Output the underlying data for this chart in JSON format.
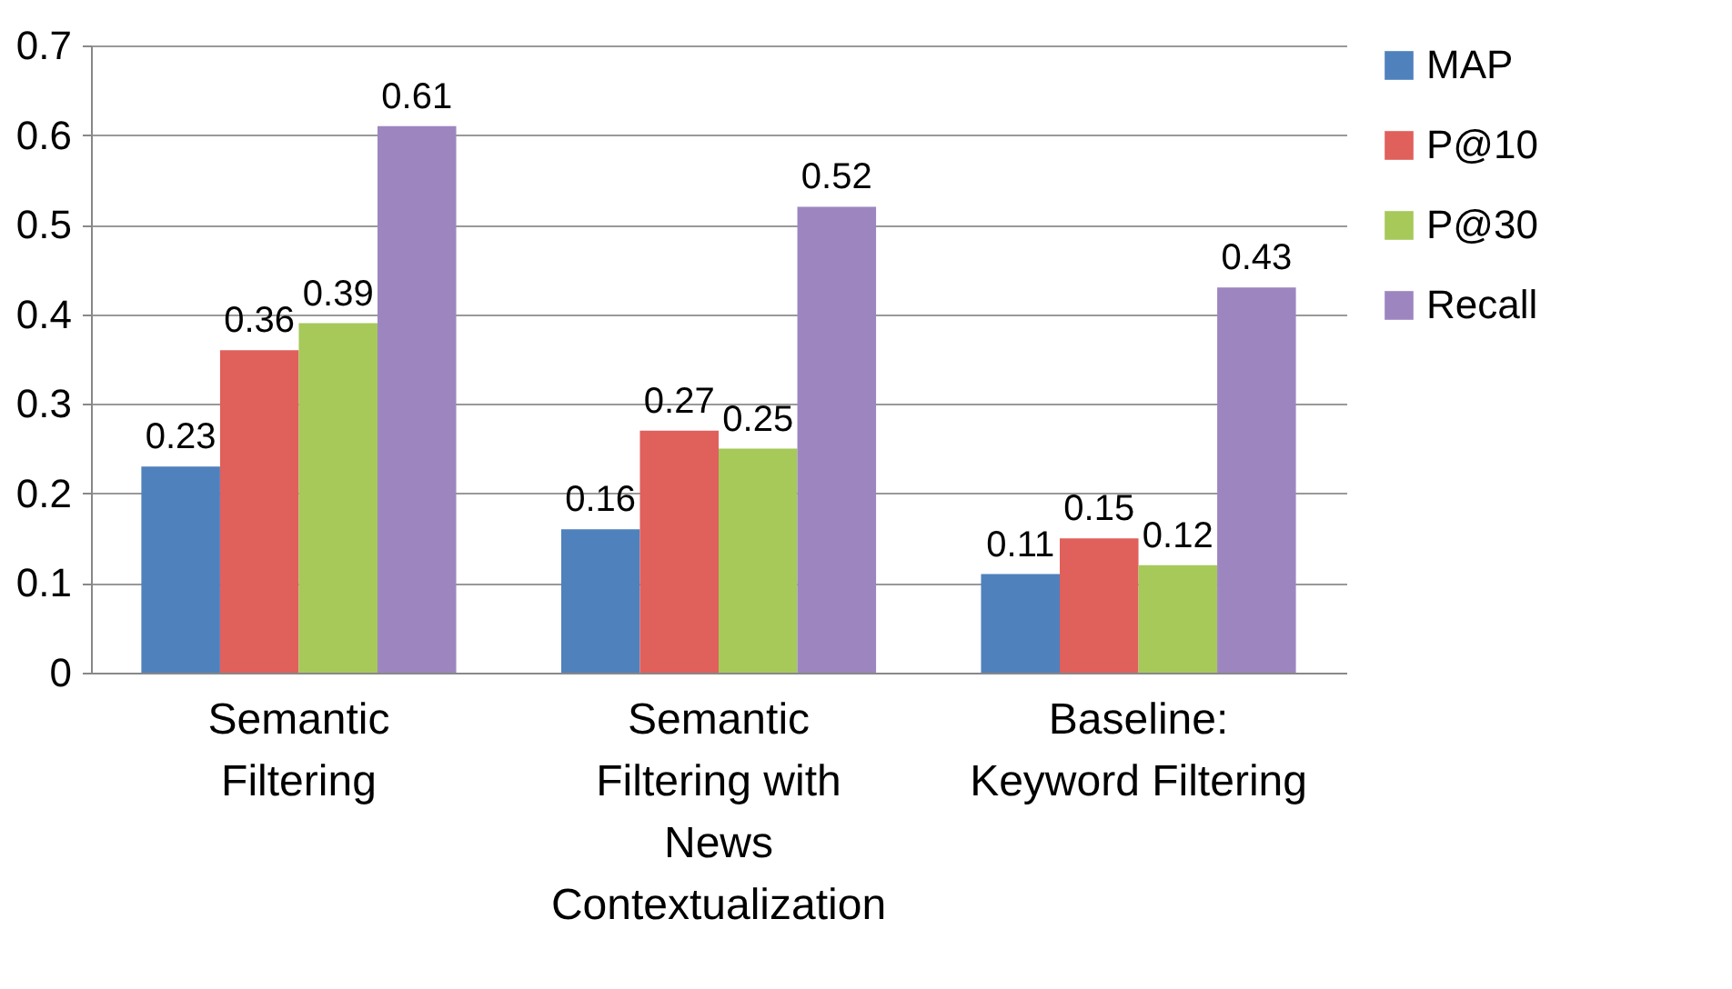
{
  "chart_data": {
    "type": "bar",
    "categories": [
      "Semantic Filtering",
      "Semantic Filtering with News Contextualization",
      "Baseline: Keyword Filtering"
    ],
    "series": [
      {
        "name": "MAP",
        "color": "#4f81bd",
        "values": [
          0.23,
          0.16,
          0.11
        ]
      },
      {
        "name": "P@10",
        "color": "#e0605c",
        "values": [
          0.36,
          0.27,
          0.15
        ]
      },
      {
        "name": "P@30",
        "color": "#a6c95a",
        "values": [
          0.39,
          0.25,
          0.12
        ]
      },
      {
        "name": "Recall",
        "color": "#9d86c0",
        "values": [
          0.61,
          0.52,
          0.43
        ]
      }
    ],
    "ylim": [
      0,
      0.7
    ],
    "yticks": [
      0,
      0.1,
      0.2,
      0.3,
      0.4,
      0.5,
      0.6,
      0.7
    ],
    "grid": "y",
    "legend": "right",
    "data_labels": true
  }
}
